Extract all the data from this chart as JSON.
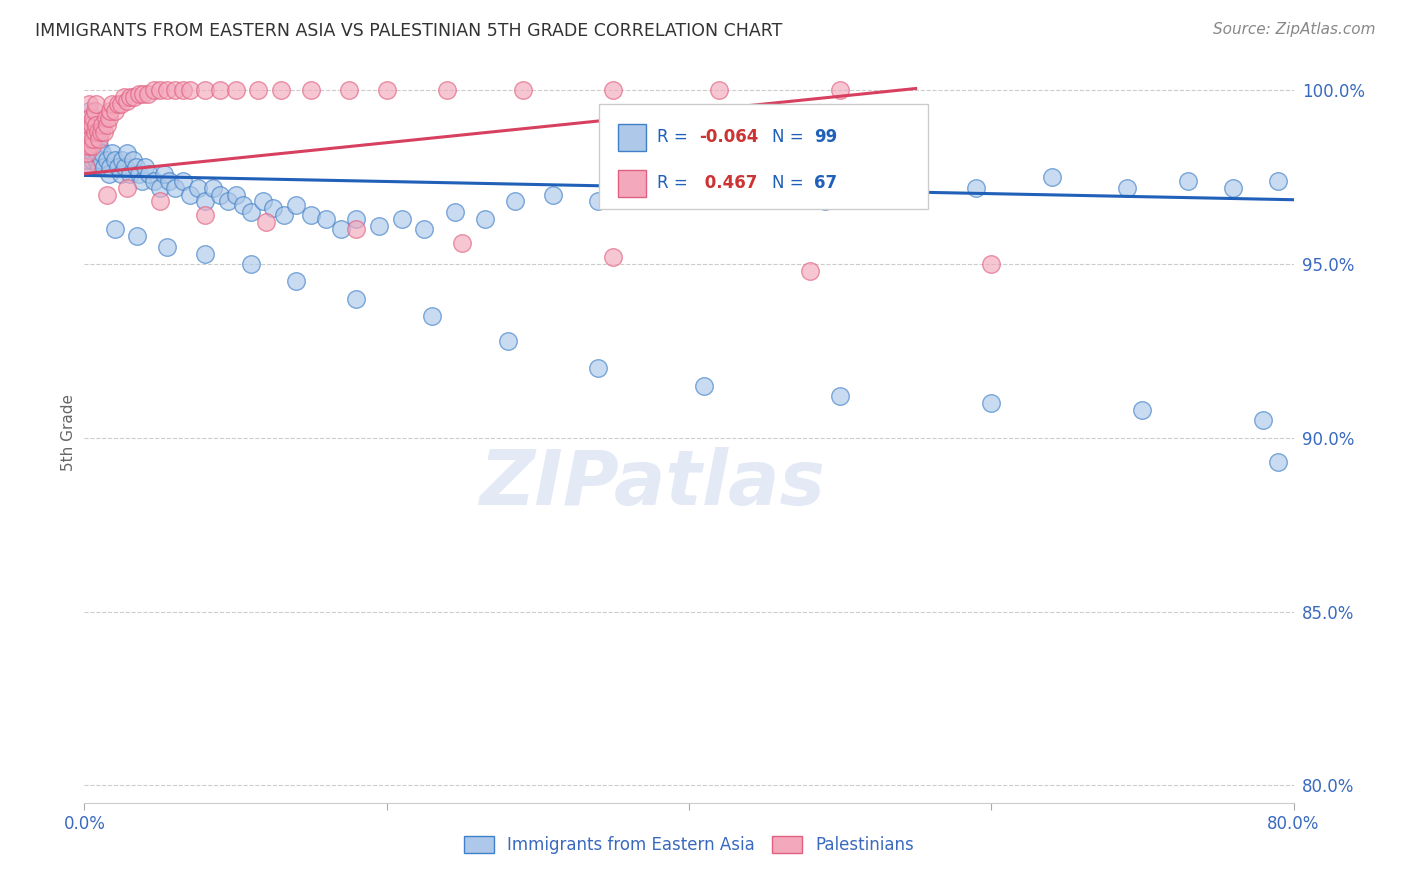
{
  "title": "IMMIGRANTS FROM EASTERN ASIA VS PALESTINIAN 5TH GRADE CORRELATION CHART",
  "source": "Source: ZipAtlas.com",
  "ylabel": "5th Grade",
  "xlim": [
    0.0,
    0.8
  ],
  "ylim": [
    0.795,
    1.008
  ],
  "yticks": [
    0.8,
    0.85,
    0.9,
    0.95,
    1.0
  ],
  "ytick_labels": [
    "80.0%",
    "85.0%",
    "90.0%",
    "95.0%",
    "100.0%"
  ],
  "legend_blue_label": "Immigrants from Eastern Asia",
  "legend_pink_label": "Palestinians",
  "blue_R": "-0.064",
  "blue_N": "99",
  "pink_R": "0.467",
  "pink_N": "67",
  "blue_color": "#adc8e8",
  "pink_color": "#f4a8bc",
  "blue_edge_color": "#4080c8",
  "pink_edge_color": "#e06080",
  "blue_line_color": "#2060b8",
  "pink_line_color": "#d84060",
  "background_color": "#ffffff",
  "watermark": "ZIPatlas",
  "blue_points_x": [
    0.001,
    0.001,
    0.002,
    0.002,
    0.002,
    0.003,
    0.003,
    0.003,
    0.004,
    0.004,
    0.005,
    0.005,
    0.006,
    0.006,
    0.007,
    0.007,
    0.008,
    0.008,
    0.009,
    0.01,
    0.01,
    0.011,
    0.012,
    0.013,
    0.015,
    0.016,
    0.017,
    0.018,
    0.02,
    0.022,
    0.024,
    0.025,
    0.027,
    0.028,
    0.03,
    0.032,
    0.034,
    0.036,
    0.038,
    0.04,
    0.043,
    0.046,
    0.05,
    0.053,
    0.056,
    0.06,
    0.065,
    0.07,
    0.075,
    0.08,
    0.085,
    0.09,
    0.095,
    0.1,
    0.105,
    0.11,
    0.118,
    0.125,
    0.132,
    0.14,
    0.15,
    0.16,
    0.17,
    0.18,
    0.195,
    0.21,
    0.225,
    0.245,
    0.265,
    0.285,
    0.31,
    0.34,
    0.37,
    0.4,
    0.44,
    0.49,
    0.54,
    0.59,
    0.64,
    0.69,
    0.73,
    0.76,
    0.79,
    0.02,
    0.035,
    0.055,
    0.08,
    0.11,
    0.14,
    0.18,
    0.23,
    0.28,
    0.34,
    0.41,
    0.5,
    0.6,
    0.7,
    0.78,
    0.79
  ],
  "blue_points_y": [
    0.978,
    0.984,
    0.98,
    0.986,
    0.992,
    0.982,
    0.988,
    0.994,
    0.984,
    0.99,
    0.98,
    0.986,
    0.982,
    0.988,
    0.984,
    0.99,
    0.98,
    0.986,
    0.982,
    0.984,
    0.978,
    0.98,
    0.982,
    0.978,
    0.98,
    0.976,
    0.978,
    0.982,
    0.98,
    0.978,
    0.976,
    0.98,
    0.978,
    0.982,
    0.976,
    0.98,
    0.978,
    0.976,
    0.974,
    0.978,
    0.976,
    0.974,
    0.972,
    0.976,
    0.974,
    0.972,
    0.974,
    0.97,
    0.972,
    0.968,
    0.972,
    0.97,
    0.968,
    0.97,
    0.967,
    0.965,
    0.968,
    0.966,
    0.964,
    0.967,
    0.964,
    0.963,
    0.96,
    0.963,
    0.961,
    0.963,
    0.96,
    0.965,
    0.963,
    0.968,
    0.97,
    0.968,
    0.972,
    0.974,
    0.972,
    0.968,
    0.97,
    0.972,
    0.975,
    0.972,
    0.974,
    0.972,
    0.974,
    0.96,
    0.958,
    0.955,
    0.953,
    0.95,
    0.945,
    0.94,
    0.935,
    0.928,
    0.92,
    0.915,
    0.912,
    0.91,
    0.908,
    0.905,
    0.893
  ],
  "pink_points_x": [
    0.001,
    0.001,
    0.001,
    0.002,
    0.002,
    0.003,
    0.003,
    0.003,
    0.004,
    0.004,
    0.005,
    0.005,
    0.006,
    0.006,
    0.007,
    0.007,
    0.008,
    0.008,
    0.009,
    0.01,
    0.011,
    0.012,
    0.013,
    0.014,
    0.015,
    0.016,
    0.017,
    0.018,
    0.02,
    0.022,
    0.024,
    0.026,
    0.028,
    0.03,
    0.033,
    0.036,
    0.039,
    0.042,
    0.046,
    0.05,
    0.055,
    0.06,
    0.065,
    0.07,
    0.08,
    0.09,
    0.1,
    0.115,
    0.13,
    0.15,
    0.175,
    0.2,
    0.24,
    0.29,
    0.35,
    0.42,
    0.5,
    0.015,
    0.028,
    0.05,
    0.08,
    0.12,
    0.18,
    0.25,
    0.35,
    0.48,
    0.6
  ],
  "pink_points_y": [
    0.978,
    0.984,
    0.99,
    0.982,
    0.988,
    0.984,
    0.99,
    0.996,
    0.986,
    0.992,
    0.984,
    0.99,
    0.986,
    0.992,
    0.988,
    0.994,
    0.99,
    0.996,
    0.988,
    0.986,
    0.988,
    0.99,
    0.988,
    0.992,
    0.99,
    0.992,
    0.994,
    0.996,
    0.994,
    0.996,
    0.996,
    0.998,
    0.997,
    0.998,
    0.998,
    0.999,
    0.999,
    0.999,
    1.0,
    1.0,
    1.0,
    1.0,
    1.0,
    1.0,
    1.0,
    1.0,
    1.0,
    1.0,
    1.0,
    1.0,
    1.0,
    1.0,
    1.0,
    1.0,
    1.0,
    1.0,
    1.0,
    0.97,
    0.972,
    0.968,
    0.964,
    0.962,
    0.96,
    0.956,
    0.952,
    0.948,
    0.95
  ],
  "blue_trend_x": [
    0.0,
    0.8
  ],
  "blue_trend_y": [
    0.9755,
    0.9685
  ],
  "pink_trend_x": [
    0.0,
    0.55
  ],
  "pink_trend_y": [
    0.976,
    1.0005
  ]
}
